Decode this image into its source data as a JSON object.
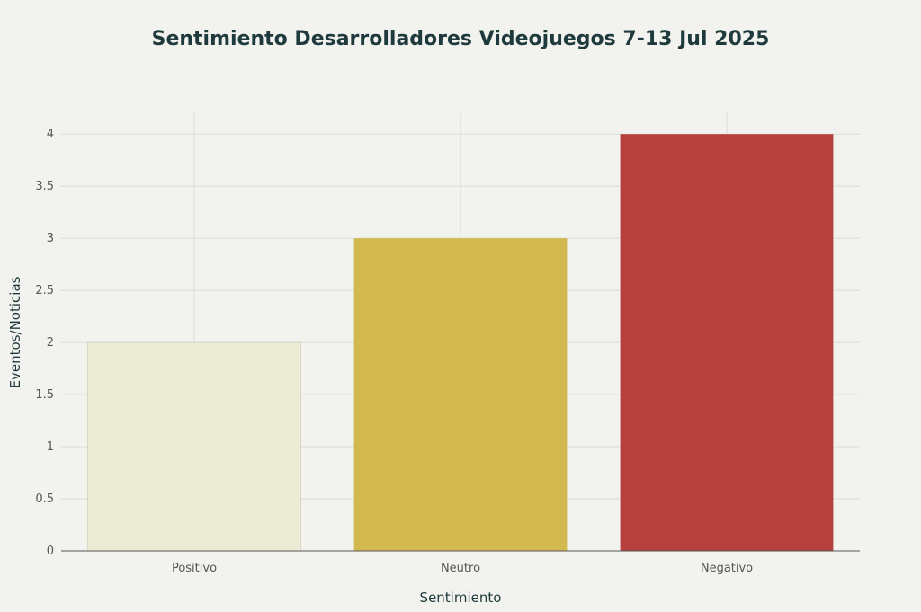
{
  "chart_data": {
    "type": "bar",
    "title": "Sentimiento Desarrolladores Videojuegos 7-13 Jul 2025",
    "xlabel": "Sentimiento",
    "ylabel": "Eventos/Noticias",
    "categories": [
      "Positivo",
      "Neutro",
      "Negativo"
    ],
    "values": [
      2,
      3,
      4
    ],
    "colors": [
      "#ecebd6",
      "#d2b94f",
      "#b5403d"
    ],
    "ylim": [
      0,
      4.2
    ],
    "yticks": [
      0,
      0.5,
      1,
      1.5,
      2,
      2.5,
      3,
      3.5,
      4
    ],
    "ytick_labels": [
      "0",
      "0.5",
      "1",
      "1.5",
      "2",
      "2.5",
      "3",
      "3.5",
      "4"
    ],
    "grid": true,
    "legend": false
  }
}
